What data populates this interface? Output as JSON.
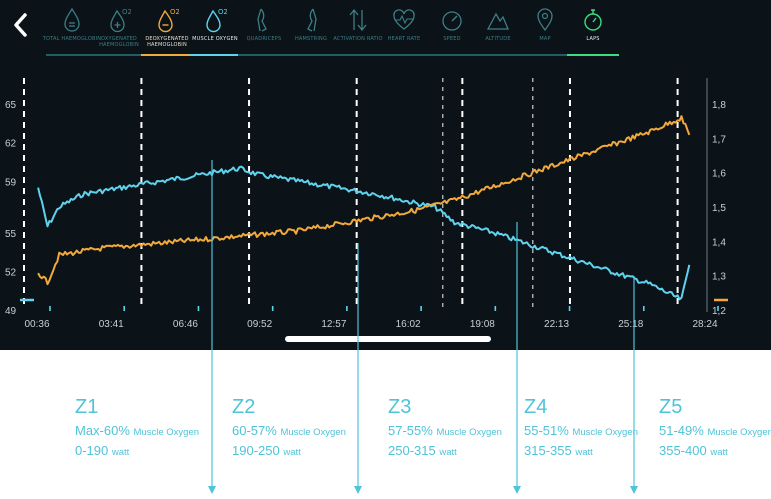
{
  "toolbar": {
    "tabs": [
      {
        "id": "total-haemoglobin",
        "label": "TOTAL HAEMOGLOBIN",
        "icon": "drop-equals-icon",
        "active": false
      },
      {
        "id": "oxygenated-haemoglobin",
        "label": "OXYGENATED HAEMOGLOBIN",
        "icon": "drop-o2-plus-icon",
        "active": false
      },
      {
        "id": "deoxygenated-haemoglobin",
        "label": "DEOXYGENATED HAEMOGLOBIN",
        "icon": "drop-o2-minus-icon",
        "active": true,
        "color": "#f2a93b"
      },
      {
        "id": "muscle-oxygen",
        "label": "MUSCLE OXYGEN",
        "icon": "drop-o2-icon",
        "active": true,
        "color": "#5fd3ee"
      },
      {
        "id": "quadriceps",
        "label": "QUADRICEPS",
        "icon": "leg-icon",
        "active": false
      },
      {
        "id": "hamstring",
        "label": "HAMSTRING",
        "icon": "leg-back-icon",
        "active": false
      },
      {
        "id": "activation-ratio",
        "label": "ACTIVATION RATIO",
        "icon": "updown-arrows-icon",
        "active": false
      },
      {
        "id": "heart-rate",
        "label": "HEART RATE",
        "icon": "heart-icon",
        "active": false
      },
      {
        "id": "speed",
        "label": "SPEED",
        "icon": "speedometer-icon",
        "active": false
      },
      {
        "id": "altitude",
        "label": "ALTITUDE",
        "icon": "mountain-icon",
        "active": false
      },
      {
        "id": "map",
        "label": "MAP",
        "icon": "map-pin-icon",
        "active": false
      },
      {
        "id": "laps",
        "label": "LAPS",
        "icon": "stopwatch-icon",
        "active": true,
        "color": "#3ddc84"
      }
    ]
  },
  "chart_data": {
    "type": "line",
    "x_ticks": [
      "00:36",
      "03:41",
      "06:46",
      "09:52",
      "12:57",
      "16:02",
      "19:08",
      "22:13",
      "25:18",
      "28:24"
    ],
    "y_left_ticks": [
      49,
      52,
      55,
      59,
      62,
      65
    ],
    "y_left_range": [
      49,
      65
    ],
    "y_right_ticks": [
      "1,2",
      "1,3",
      "1,4",
      "1,5",
      "1,6",
      "1,7",
      "1,8"
    ],
    "y_right_range": [
      1.2,
      1.8
    ],
    "x_range_seconds": [
      0,
      1740
    ],
    "lap_marker_seconds": [
      0,
      300,
      575,
      850,
      1120,
      1395,
      1670
    ],
    "extra_lap_markers_seconds": [
      1070,
      1300
    ],
    "series": [
      {
        "name": "Muscle Oxygen",
        "axis": "left",
        "color": "#5fd3ee",
        "t": [
          36,
          60,
          90,
          150,
          250,
          350,
          450,
          550,
          600,
          700,
          800,
          900,
          1000,
          1050,
          1100,
          1200,
          1300,
          1400,
          1500,
          1600,
          1680,
          1700
        ],
        "values": [
          58.5,
          55.5,
          57,
          58,
          58.5,
          59,
          59.5,
          60,
          59.5,
          59,
          58.5,
          58,
          57.3,
          57,
          55.8,
          55,
          54,
          53,
          52,
          51,
          49.8,
          52.5
        ]
      },
      {
        "name": "Deoxygenated Haemoglobin",
        "axis": "right",
        "color": "#f2a93b",
        "t": [
          36,
          60,
          90,
          200,
          300,
          400,
          500,
          600,
          700,
          800,
          900,
          1000,
          1100,
          1200,
          1300,
          1400,
          1500,
          1600,
          1680,
          1700
        ],
        "values": [
          1.31,
          1.28,
          1.36,
          1.38,
          1.39,
          1.4,
          1.41,
          1.42,
          1.43,
          1.45,
          1.47,
          1.49,
          1.52,
          1.56,
          1.6,
          1.64,
          1.68,
          1.72,
          1.76,
          1.71
        ]
      }
    ]
  },
  "zones": [
    {
      "title": "Z1",
      "range": "Max-60%",
      "range_unit": "Muscle Oxygen",
      "watt": "0-190",
      "watt_unit": "watt"
    },
    {
      "title": "Z2",
      "range": "60-57%",
      "range_unit": "Muscle Oxygen",
      "watt": "190-250",
      "watt_unit": "watt"
    },
    {
      "title": "Z3",
      "range": "57-55%",
      "range_unit": "Muscle Oxygen",
      "watt": "250-315",
      "watt_unit": "watt"
    },
    {
      "title": "Z4",
      "range": "55-51%",
      "range_unit": "Muscle Oxygen",
      "watt": "315-355",
      "watt_unit": "watt"
    },
    {
      "title": "Z5",
      "range": "51-49%",
      "range_unit": "Muscle Oxygen",
      "watt": "355-400",
      "watt_unit": "watt"
    }
  ],
  "zone_boundary_percent": [
    59.5,
    57,
    55,
    51
  ]
}
